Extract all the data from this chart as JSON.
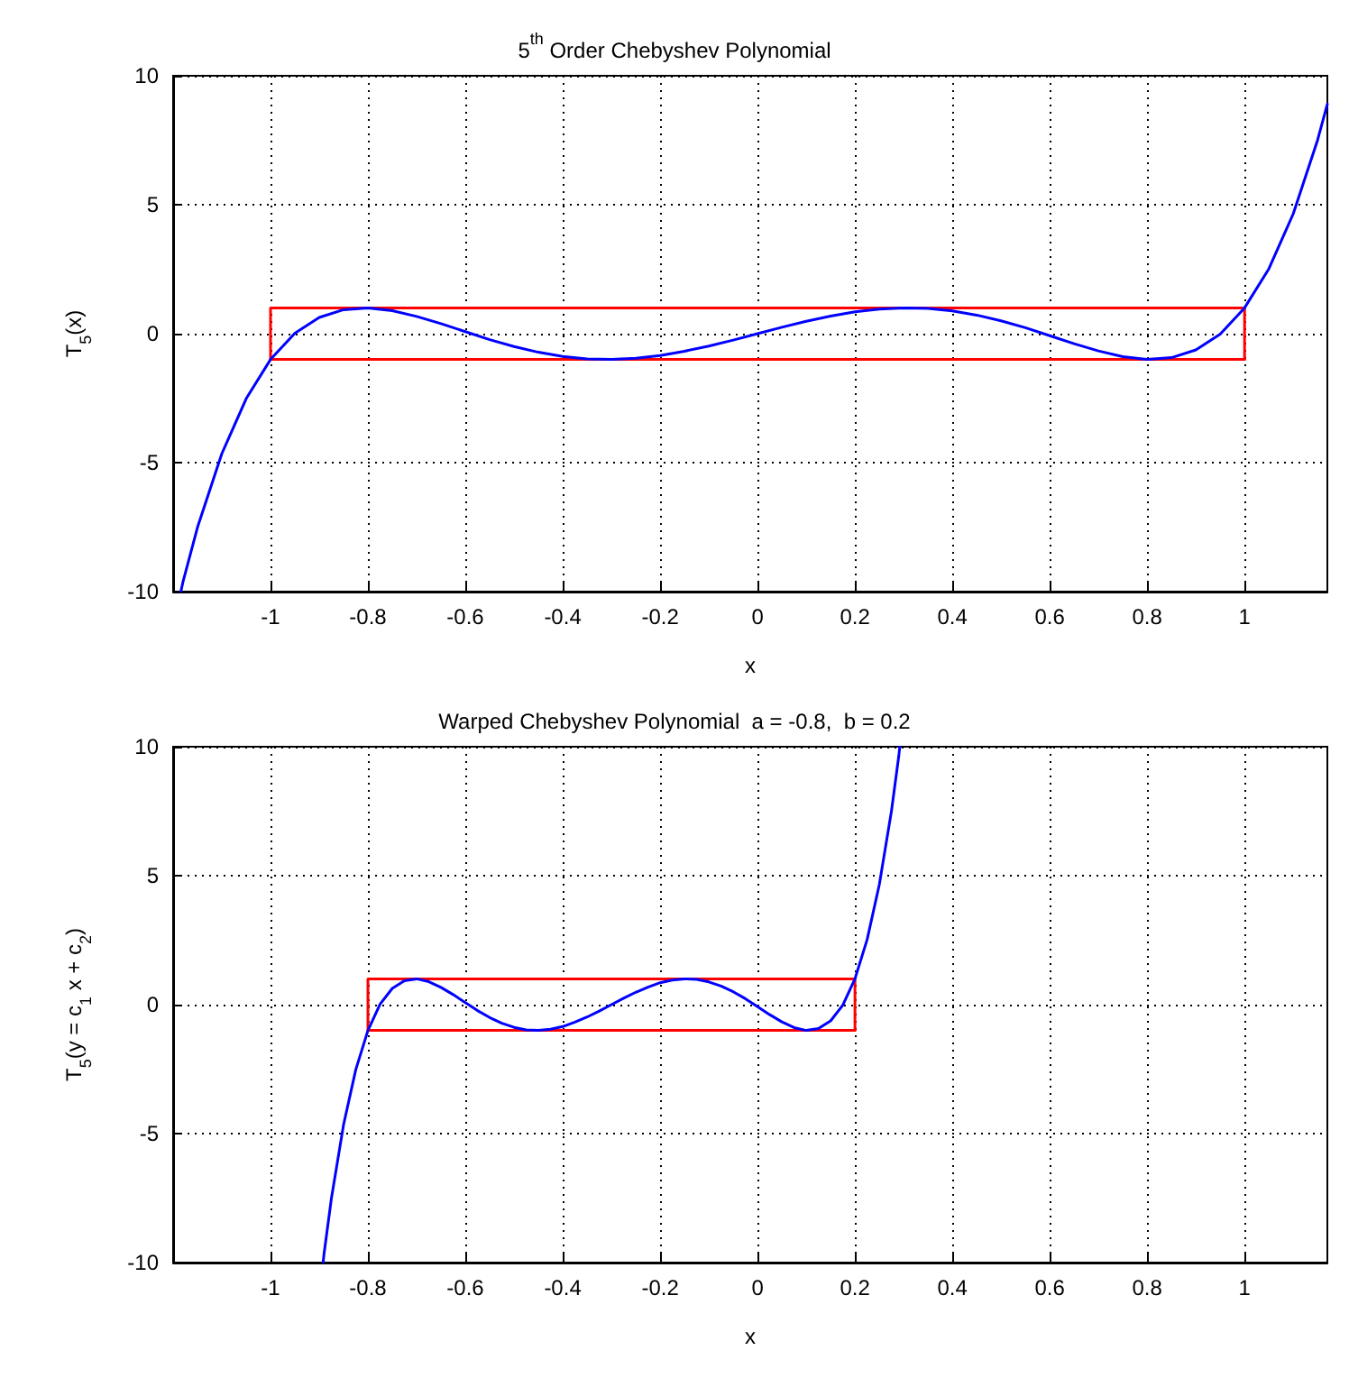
{
  "chart_data": [
    {
      "type": "line",
      "title": "5$^{th}$ Order Chebyshev Polynomial",
      "xlabel": "x",
      "ylabel": "T$_{5}$(x)",
      "xlim": [
        -1.2,
        1.17
      ],
      "ylim": [
        -10,
        10
      ],
      "xticks": [
        -1,
        -0.8,
        -0.6,
        -0.4,
        -0.2,
        0,
        0.2,
        0.4,
        0.6,
        0.8,
        1
      ],
      "yticks": [
        -10,
        -5,
        0,
        5,
        10
      ],
      "grid": true,
      "marker": "none",
      "line_style": "solid",
      "series": [
        {
          "color": "#0000ff",
          "x": [
            -1.184,
            -1.18,
            -1.15,
            -1.1,
            -1.05,
            -1,
            -0.95,
            -0.9,
            -0.85,
            -0.8,
            -0.75,
            -0.7,
            -0.65,
            -0.6,
            -0.55,
            -0.5,
            -0.45,
            -0.4,
            -0.35,
            -0.3,
            -0.25,
            -0.2,
            -0.15,
            -0.1,
            -0.05,
            0,
            0.05,
            0.1,
            0.15,
            0.2,
            0.25,
            0.3,
            0.35,
            0.4,
            0.45,
            0.5,
            0.55,
            0.6,
            0.65,
            0.7,
            0.75,
            0.8,
            0.85,
            0.9,
            0.95,
            1,
            1.05,
            1.1,
            1.15,
            1.17
          ],
          "values": [
            -9.99,
            -9.64,
            -7.51,
            -4.65,
            -2.52,
            -1,
            0.02,
            0.63,
            0.93,
            1.0,
            0.89,
            0.67,
            0.39,
            0.08,
            -0.23,
            -0.5,
            -0.72,
            -0.88,
            -0.98,
            -1.0,
            -0.95,
            -0.85,
            -0.68,
            -0.48,
            -0.25,
            0,
            0.25,
            0.48,
            0.68,
            0.85,
            0.95,
            1.0,
            0.98,
            0.88,
            0.72,
            0.5,
            0.23,
            -0.08,
            -0.39,
            -0.67,
            -0.89,
            -1.0,
            -0.93,
            -0.63,
            -0.02,
            1,
            2.52,
            4.65,
            7.51,
            8.9
          ]
        },
        {
          "color": "#ff0000",
          "x": [
            -1,
            -1,
            1,
            1
          ],
          "values": [
            -1,
            1,
            1,
            -1
          ]
        },
        {
          "color": "#ff0000",
          "x": [
            -1,
            1
          ],
          "values": [
            -1,
            -1
          ]
        }
      ]
    },
    {
      "type": "line",
      "title": "Warped Chebyshev Polynomial  a = -0.8,  b = 0.2",
      "xlabel": "x",
      "ylabel": "T$_{5}$(y = c$_{1}$ x + c$_{2}$)",
      "xlim": [
        -1.2,
        1.17
      ],
      "ylim": [
        -10,
        10
      ],
      "xticks": [
        -1,
        -0.8,
        -0.6,
        -0.4,
        -0.2,
        0,
        0.2,
        0.4,
        0.6,
        0.8,
        1
      ],
      "yticks": [
        -10,
        -5,
        0,
        5,
        10
      ],
      "grid": true,
      "marker": "none",
      "line_style": "solid",
      "series": [
        {
          "color": "#0000ff",
          "x": [
            -0.892,
            -0.89,
            -0.875,
            -0.85,
            -0.825,
            -0.8,
            -0.775,
            -0.75,
            -0.725,
            -0.7,
            -0.675,
            -0.65,
            -0.625,
            -0.6,
            -0.575,
            -0.55,
            -0.525,
            -0.5,
            -0.475,
            -0.45,
            -0.425,
            -0.4,
            -0.375,
            -0.35,
            -0.325,
            -0.3,
            -0.275,
            -0.25,
            -0.225,
            -0.2,
            -0.175,
            -0.15,
            -0.125,
            -0.1,
            -0.075,
            -0.05,
            -0.025,
            0,
            0.025,
            0.05,
            0.075,
            0.1,
            0.125,
            0.15,
            0.175,
            0.2,
            0.225,
            0.25,
            0.275,
            0.29,
            0.292
          ],
          "values": [
            -9.99,
            -9.64,
            -7.51,
            -4.65,
            -2.52,
            -1,
            0.02,
            0.63,
            0.93,
            1.0,
            0.89,
            0.67,
            0.39,
            0.08,
            -0.23,
            -0.5,
            -0.72,
            -0.88,
            -0.98,
            -1.0,
            -0.95,
            -0.85,
            -0.68,
            -0.48,
            -0.25,
            0,
            0.25,
            0.48,
            0.68,
            0.85,
            0.95,
            1.0,
            0.98,
            0.88,
            0.72,
            0.5,
            0.23,
            -0.08,
            -0.39,
            -0.67,
            -0.89,
            -1.0,
            -0.93,
            -0.63,
            -0.02,
            1,
            2.52,
            4.65,
            7.51,
            9.64,
            9.99
          ]
        },
        {
          "color": "#ff0000",
          "x": [
            -0.8,
            -0.8,
            0.2,
            0.2
          ],
          "values": [
            -1,
            1,
            1,
            -1
          ]
        },
        {
          "color": "#ff0000",
          "x": [
            -0.8,
            0.2
          ],
          "values": [
            -1,
            -1
          ]
        }
      ]
    }
  ]
}
